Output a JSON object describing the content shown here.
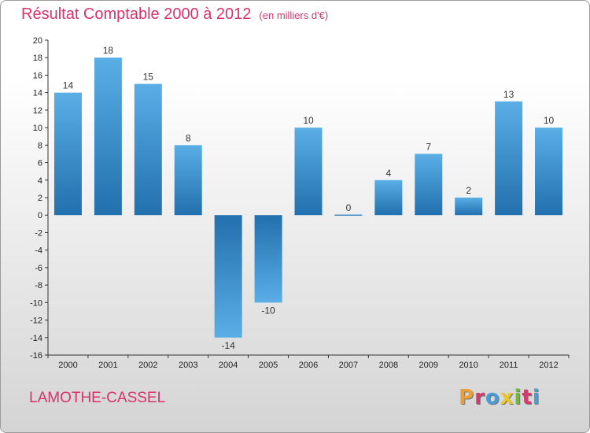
{
  "header": {
    "title": "Résultat Comptable 2000 à 2012",
    "subtitle": "(en milliers d'€)"
  },
  "footer": {
    "town": "LAMOTHE-CASSEL",
    "logo": "Proxiti",
    "logo_colors": [
      "#e8a13a",
      "#d13c6e",
      "#4a9cd6",
      "#e8c72e",
      "#6dbb3b",
      "#d13c6e",
      "#4a9cd6"
    ]
  },
  "colors": {
    "bar_light": "#5aaee6",
    "bar_dark": "#2270ad",
    "title": "#d6336c"
  },
  "chart_data": {
    "type": "bar",
    "title": "Résultat Comptable 2000 à 2012",
    "subtitle": "(en milliers d'€)",
    "categories": [
      "2000",
      "2001",
      "2002",
      "2003",
      "2004",
      "2005",
      "2006",
      "2007",
      "2008",
      "2009",
      "2010",
      "2011",
      "2012"
    ],
    "values": [
      14,
      18,
      15,
      8,
      -14,
      -10,
      10,
      0,
      4,
      7,
      2,
      13,
      10
    ],
    "data_labels": [
      "14",
      "18",
      "15",
      "8",
      "-14",
      "-10",
      "10",
      "0",
      "4",
      "7",
      "2",
      "13",
      "10"
    ],
    "ylim": [
      -16,
      20
    ],
    "yticks": [
      20,
      18,
      16,
      14,
      12,
      10,
      8,
      6,
      4,
      2,
      0,
      -2,
      -4,
      -6,
      -8,
      -10,
      -12,
      -14,
      -16
    ],
    "xlabel": "",
    "ylabel": "",
    "grid": false,
    "legend": "none"
  }
}
